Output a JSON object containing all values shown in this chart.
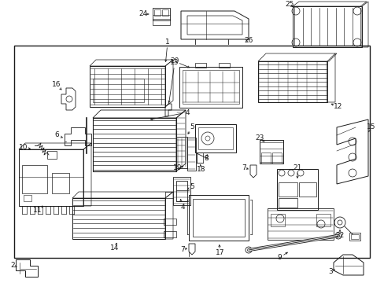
{
  "bg": "#ffffff",
  "lc": "#1a1a1a",
  "figsize": [
    4.89,
    3.6
  ],
  "dpi": 100
}
